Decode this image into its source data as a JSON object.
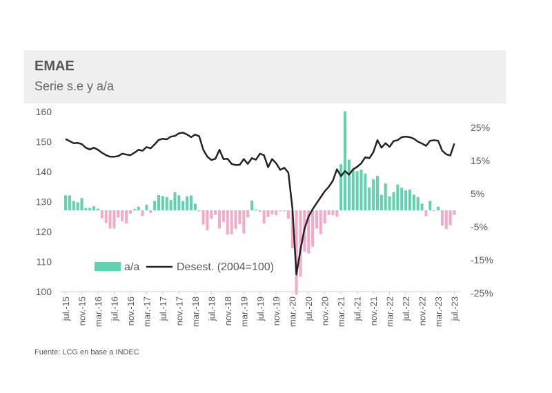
{
  "header": {
    "title": "EMAE",
    "subtitle": "Serie s.e y a/a"
  },
  "source": "Fuente: LCG en base a INDEC",
  "colors": {
    "positive_bar": "#5fd3ae",
    "negative_bar": "#f4a9c9",
    "line": "#222222"
  },
  "chart_data": {
    "type": "bar+line",
    "title": "EMAE",
    "subtitle": "Serie s.e y a/a",
    "x_start": "jul.-15",
    "x_end": "jul.-23",
    "x_tick_labels": [
      "jul.-15",
      "nov.-15",
      "mar.-16",
      "jul.-16",
      "nov.-16",
      "mar.-17",
      "jul.-17",
      "nov.-17",
      "mar.-18",
      "jul.-18",
      "nov.-18",
      "mar.-19",
      "jul.-19",
      "nov.-19",
      "mar.-20",
      "jul.-20",
      "nov.-20",
      "mar.-21",
      "jul.-21",
      "nov.-21",
      "mar.-22",
      "jul.-22",
      "nov.-22",
      "mar.-23",
      "jul.-23"
    ],
    "left_axis": {
      "ylim": [
        100,
        160
      ],
      "ticks": [
        "100",
        "110",
        "120",
        "130",
        "140",
        "150",
        "160"
      ]
    },
    "right_axis": {
      "ylim": [
        -25,
        25
      ],
      "ticks": [
        "-25%",
        "-15%",
        "-5%",
        "5%",
        "15%",
        "25%"
      ]
    },
    "legend": [
      "a/a",
      "Desest. (2004=100)"
    ],
    "legend_placement": "inside-bottom-left",
    "series": [
      {
        "name": "a/a",
        "type": "bar",
        "axis": "right",
        "unit": "%",
        "values": [
          4.5,
          4.5,
          2.8,
          2.4,
          3.7,
          0.7,
          0.7,
          1.2,
          0.5,
          -2.4,
          -3.8,
          -5.5,
          -5.5,
          -2.2,
          -3.3,
          -4.0,
          -1.0,
          0.4,
          1.1,
          -1.7,
          1.7,
          -0.8,
          2.8,
          4.6,
          4.3,
          4.0,
          3.1,
          5.5,
          4.5,
          2.8,
          4.2,
          4.5,
          2.0,
          -0.3,
          -4.3,
          -6.0,
          -2.6,
          -1.4,
          -5.5,
          -3.5,
          -7.3,
          -7.2,
          -5.6,
          -4.2,
          -7.0,
          -2.1,
          2.9,
          0.3,
          -0.5,
          -4.0,
          -2.0,
          -1.2,
          -1.5,
          -0.3,
          -0.3,
          -2.5,
          -11.5,
          -25.5,
          -20.0,
          -12.5,
          -13.0,
          -11.0,
          -5.5,
          -7.2,
          -4.0,
          -1.4,
          -1.5,
          -2.0,
          13.9,
          29.9,
          15.3,
          12.2,
          11.8,
          12.3,
          11.1,
          6.9,
          9.4,
          10.4,
          4.7,
          8.1,
          4.2,
          5.5,
          7.8,
          6.8,
          6.0,
          6.3,
          4.7,
          4.0,
          2.0,
          -1.8,
          2.8,
          0.0,
          1.1,
          -4.6,
          -5.7,
          -4.5,
          -1.4
        ]
      },
      {
        "name": "Desest. (2004=100)",
        "type": "line",
        "axis": "left",
        "values": [
          150.9,
          150.2,
          149.5,
          149.6,
          149.2,
          148.0,
          147.4,
          148.0,
          147.3,
          146.3,
          145.5,
          145.0,
          145.0,
          145.2,
          146.0,
          145.7,
          145.5,
          146.3,
          147.3,
          147.0,
          148.2,
          147.8,
          149.1,
          150.6,
          151.0,
          150.8,
          151.7,
          151.9,
          152.8,
          153.0,
          152.4,
          151.5,
          152.4,
          151.8,
          147.3,
          145.0,
          143.9,
          144.3,
          147.3,
          144.2,
          144.3,
          142.6,
          142.2,
          142.3,
          144.2,
          142.6,
          144.5,
          144.0,
          146.0,
          145.5,
          141.5,
          144.2,
          142.8,
          140.6,
          141.3,
          139.7,
          128.0,
          105.7,
          114.0,
          121.0,
          125.0,
          127.5,
          129.5,
          131.5,
          133.5,
          135.0,
          137.0,
          140.8,
          138.5,
          140.2,
          139.0,
          140.8,
          141.6,
          142.8,
          144.8,
          144.5,
          146.5,
          150.5,
          148.0,
          149.5,
          148.3,
          150.2,
          150.5,
          151.5,
          151.7,
          151.5,
          151.0,
          150.0,
          149.4,
          148.6,
          150.3,
          150.5,
          150.3,
          147.0,
          145.8,
          145.4,
          149.4
        ]
      }
    ],
    "grid": false
  }
}
